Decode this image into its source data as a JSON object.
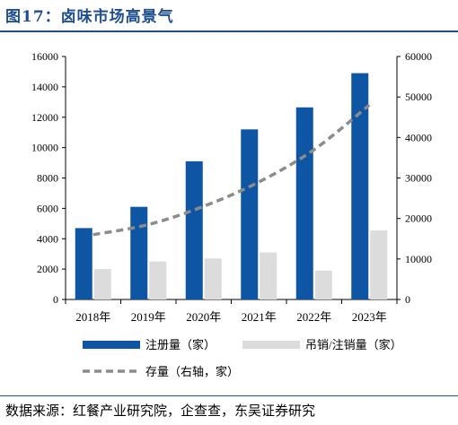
{
  "figure": {
    "title": "图17：卤味市场高景气",
    "source": "数据来源：红餐产业研究院，企查查，东吴证券研究"
  },
  "colors": {
    "registrations": "#0e56a3",
    "cancellations": "#dcdcdc",
    "stock": "#8c8c8c",
    "title_blue": "#1f4e8c"
  },
  "chart_data": {
    "type": "bar",
    "categories": [
      "2018年",
      "2019年",
      "2020年",
      "2021年",
      "2022年",
      "2023年"
    ],
    "series": [
      {
        "name": "注册量（家）",
        "type": "bar",
        "axis": "left",
        "values": [
          4700,
          6100,
          9100,
          11200,
          12650,
          14900
        ]
      },
      {
        "name": "吊销/注销量（家）",
        "type": "bar",
        "axis": "left",
        "values": [
          2000,
          2500,
          2700,
          3100,
          1900,
          4550
        ]
      },
      {
        "name": "存量（右轴，家）",
        "type": "line",
        "style": "dashed",
        "axis": "right",
        "values": [
          16000,
          18500,
          23000,
          29000,
          37000,
          48000
        ]
      }
    ],
    "y_left": {
      "min": 0,
      "max": 16000,
      "ticks": [
        "0",
        "2000",
        "4000",
        "6000",
        "8000",
        "10000",
        "12000",
        "14000",
        "16000"
      ]
    },
    "y_right": {
      "min": 0,
      "max": 60000,
      "ticks": [
        "0",
        "10000",
        "20000",
        "30000",
        "40000",
        "50000",
        "60000"
      ]
    },
    "grid": false,
    "legend_position": "bottom"
  }
}
